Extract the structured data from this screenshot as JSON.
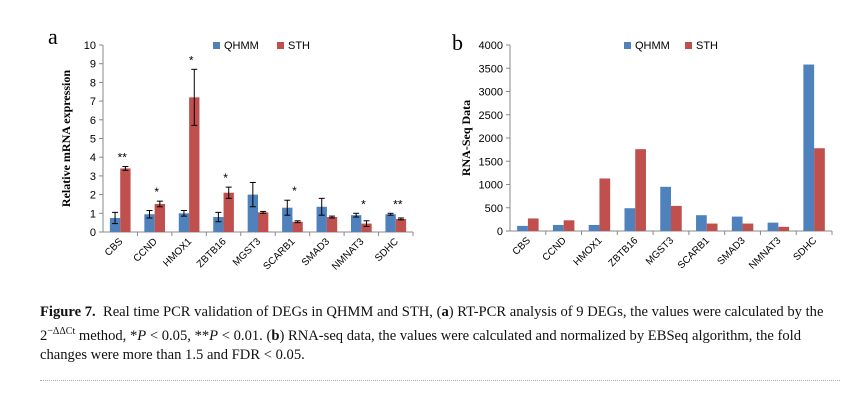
{
  "colors": {
    "qhmm": "#4f81bd",
    "sth": "#c0504d"
  },
  "chart_data": [
    {
      "type": "bar",
      "panel": "a",
      "categories": [
        "CBS",
        "CCND",
        "HMOX1",
        "ZBTB16",
        "MGST3",
        "SCARB1",
        "SMAD3",
        "NMNAT3",
        "SDHC"
      ],
      "series": [
        {
          "name": "QHMM",
          "values": [
            0.75,
            0.95,
            1.0,
            0.8,
            2.0,
            1.3,
            1.35,
            0.9,
            0.95
          ],
          "errors": [
            0.3,
            0.2,
            0.15,
            0.25,
            0.65,
            0.4,
            0.45,
            0.1,
            0.05
          ]
        },
        {
          "name": "STH",
          "values": [
            3.4,
            1.5,
            7.2,
            2.1,
            1.05,
            0.55,
            0.8,
            0.45,
            0.7
          ],
          "errors": [
            0.1,
            0.15,
            1.5,
            0.3,
            0.05,
            0.05,
            0.05,
            0.15,
            0.05
          ]
        }
      ],
      "significance": [
        "**",
        "*",
        "*",
        "*",
        "",
        "*",
        "",
        "*",
        "**"
      ],
      "ylabel": "Relative mRNA expression",
      "ylim": [
        0,
        10
      ],
      "yticks": [
        0,
        1,
        2,
        3,
        4,
        5,
        6,
        7,
        8,
        9,
        10
      ],
      "legend": "top"
    },
    {
      "type": "bar",
      "panel": "b",
      "categories": [
        "CBS",
        "CCND",
        "HMOX1",
        "ZBTB16",
        "MGST3",
        "SCARB1",
        "SMAD3",
        "NMNAT3",
        "SDHC"
      ],
      "series": [
        {
          "name": "QHMM",
          "values": [
            110,
            130,
            130,
            490,
            950,
            340,
            310,
            180,
            3580
          ]
        },
        {
          "name": "STH",
          "values": [
            270,
            230,
            1130,
            1760,
            540,
            160,
            160,
            90,
            1780
          ]
        }
      ],
      "ylabel": "RNA-Seq Data",
      "ylim": [
        0,
        4000
      ],
      "yticks": [
        0,
        500,
        1000,
        1500,
        2000,
        2500,
        3000,
        3500,
        4000
      ],
      "legend": "top"
    }
  ],
  "caption": {
    "fig_label": "Figure 7.",
    "part1": "Real time PCR validation of DEGs in QHMM and STH, (",
    "a": "a",
    "part2": ") RT-PCR analysis of 9 DEGs, the values were calculated by the 2",
    "sup": "−ΔΔCt",
    "part3": " method, *",
    "p1": "P",
    "part4": " < 0.05, **",
    "p2": "P",
    "part5": " < 0.01. (",
    "b": "b",
    "part6": ") RNA-seq data, the values were calculated and normalized by EBSeq algorithm, the fold changes were more than 1.5 and FDR < 0.05."
  }
}
